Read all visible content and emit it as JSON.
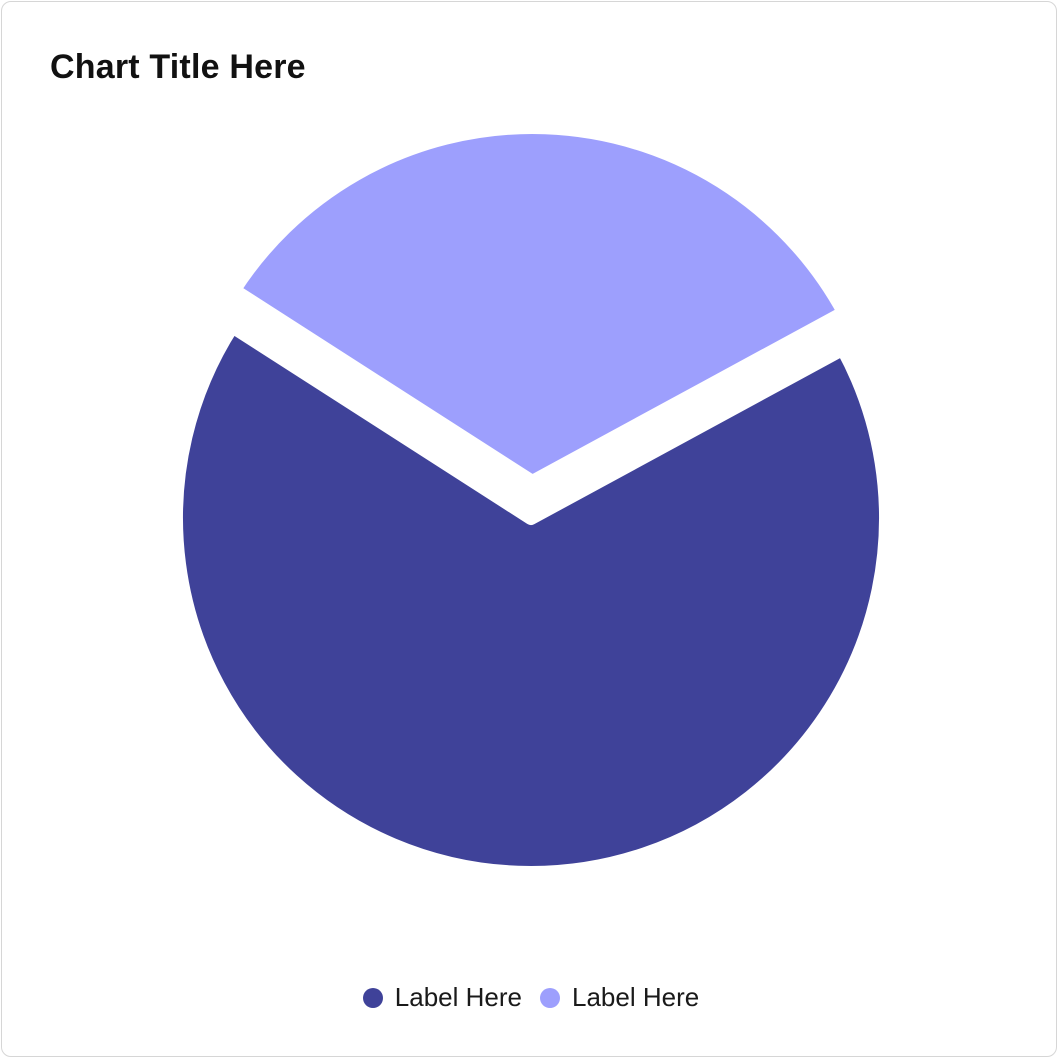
{
  "chart_data": {
    "type": "pie",
    "title": "Chart Title Here",
    "slices": [
      {
        "label": "Label Here",
        "value": 67,
        "color": "#3f4299"
      },
      {
        "label": "Label Here",
        "value": 33,
        "color": "#9d9ffd"
      }
    ],
    "start_angle_deg": -28.5,
    "legend_position": "bottom-center"
  }
}
